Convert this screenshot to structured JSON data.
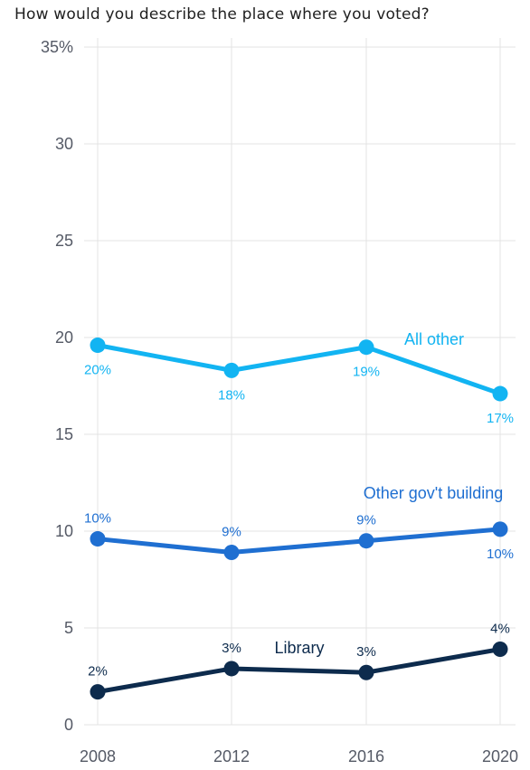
{
  "chart_data": {
    "type": "line",
    "title": "How would you describe the place where you voted?",
    "x": [
      "2008",
      "2012",
      "2016",
      "2020"
    ],
    "ylim": [
      0,
      35
    ],
    "y_ticks": [
      "0",
      "5",
      "10",
      "15",
      "20",
      "25",
      "30",
      "35%"
    ],
    "grid": true,
    "series": [
      {
        "name": "All other",
        "color": "#12b4f2",
        "values": [
          19.6,
          18.3,
          19.5,
          17.1
        ],
        "labels": [
          "20%",
          "18%",
          "19%",
          "17%"
        ],
        "label_pos": [
          "below",
          "below",
          "below",
          "below"
        ]
      },
      {
        "name": "Other gov't building",
        "color": "#1f6fd1",
        "values": [
          9.6,
          8.9,
          9.5,
          10.1
        ],
        "labels": [
          "10%",
          "9%",
          "9%",
          "10%"
        ],
        "label_pos": [
          "above",
          "above",
          "above",
          "below"
        ]
      },
      {
        "name": "Library",
        "color": "#0d2b4d",
        "values": [
          1.7,
          2.9,
          2.7,
          3.9
        ],
        "labels": [
          "2%",
          "3%",
          "3%",
          "4%"
        ],
        "label_pos": [
          "above",
          "above",
          "above",
          "above"
        ]
      }
    ]
  }
}
